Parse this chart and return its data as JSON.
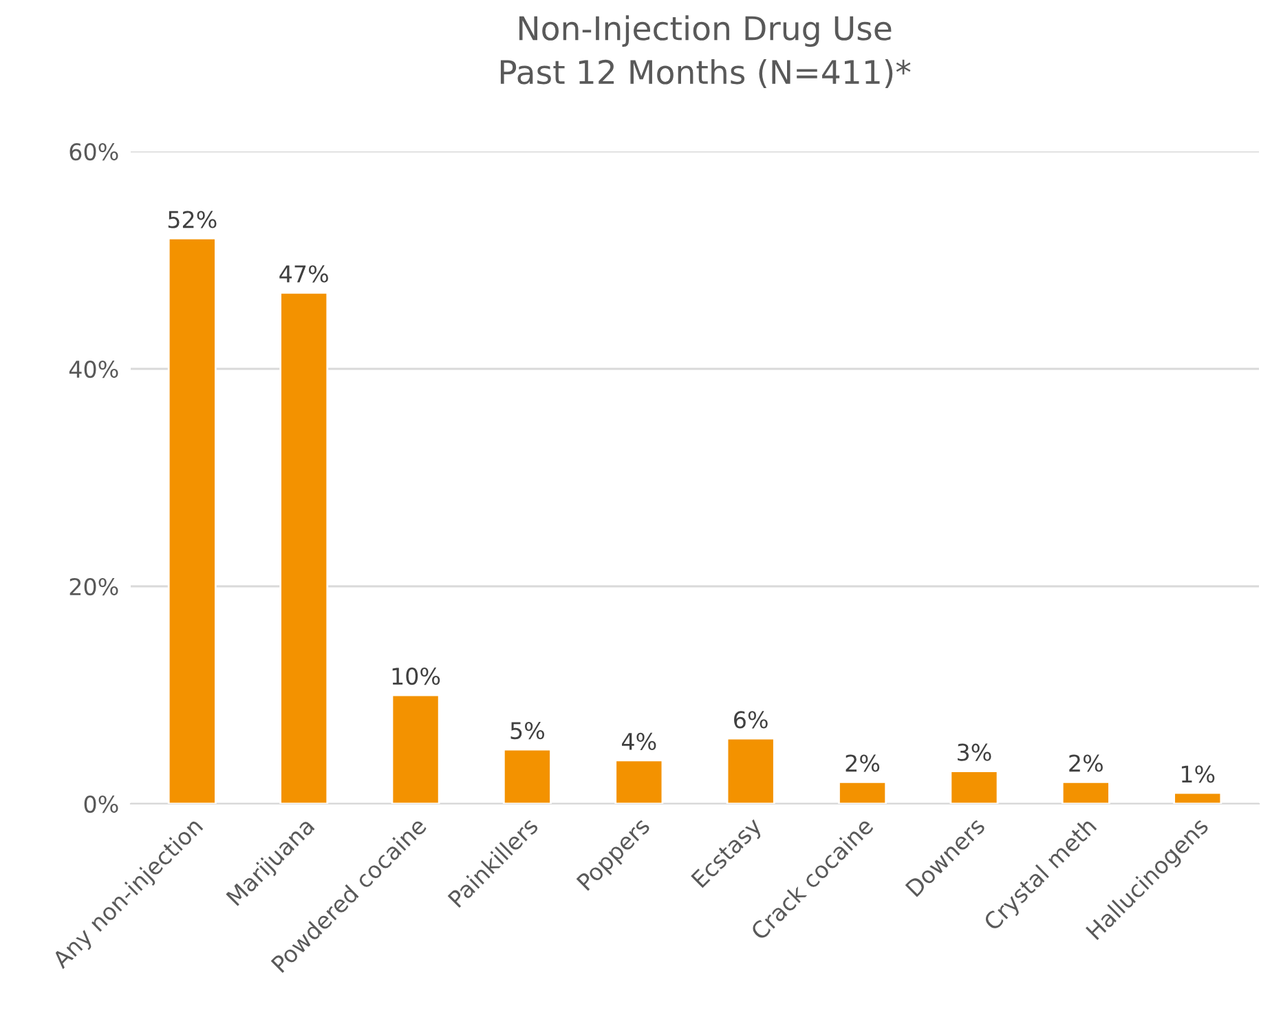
{
  "chart_data": {
    "type": "bar",
    "title": "Non-Injection Drug Use\nPast 12 Months (N=411)*",
    "categories": [
      "Any non-injection",
      "Marijuana",
      "Powdered cocaine",
      "Painkillers",
      "Poppers",
      "Ecstasy",
      "Crack cocaine",
      "Downers",
      "Crystal meth",
      "Hallucinogens"
    ],
    "values": [
      52,
      47,
      10,
      5,
      4,
      6,
      2,
      3,
      2,
      1
    ],
    "value_labels": [
      "52%",
      "47%",
      "10%",
      "5%",
      "4%",
      "6%",
      "2%",
      "3%",
      "2%",
      "1%"
    ],
    "color": "#f39200",
    "ylim": [
      0,
      60
    ],
    "yticks": [
      {
        "value": 0,
        "label": "0%"
      },
      {
        "value": 20,
        "label": "20%"
      },
      {
        "value": 40,
        "label": "40%"
      },
      {
        "value": 60,
        "label": "60%"
      }
    ],
    "grid": "y",
    "legend": false
  }
}
